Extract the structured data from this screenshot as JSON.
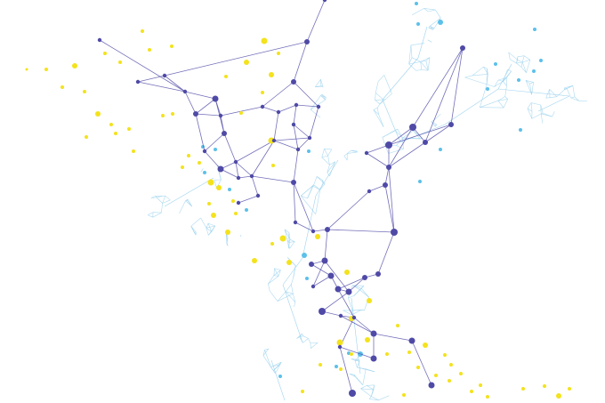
{
  "artwork": {
    "subject": "abstract-network-graph",
    "layers": [
      "light-blue-mesh",
      "purple-network",
      "yellow-particles"
    ]
  },
  "colors": {
    "background": "#ffffff",
    "purple_node": "#4f4aa6",
    "purple_edge": "#5b56ad",
    "light_blue_node": "#5cc0ea",
    "light_blue_edge": "#9fd4ee",
    "yellow_dot": "#f4e21c"
  }
}
